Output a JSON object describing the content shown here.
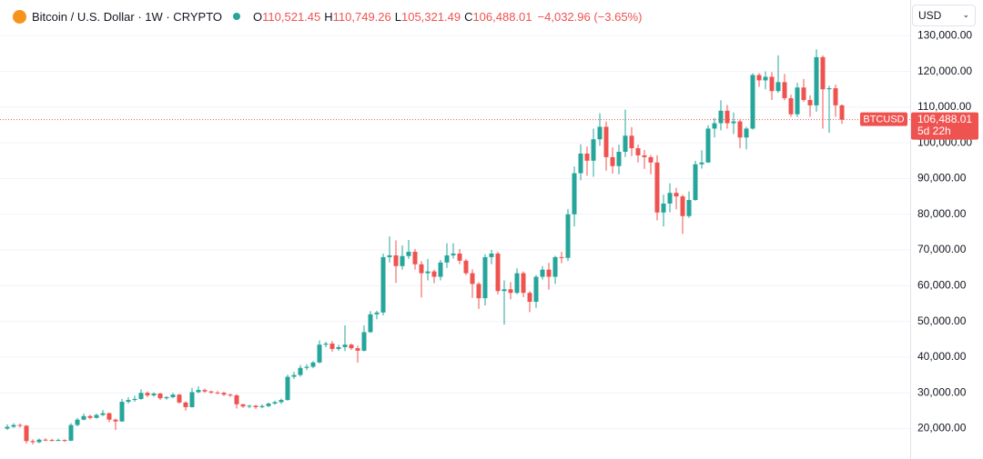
{
  "chart_data": {
    "type": "candlestick",
    "title": "Bitcoin / U.S. Dollar · 1W · CRYPTO",
    "header": {
      "o_label": "O",
      "o_value": "110,521.45",
      "h_label": "H",
      "h_value": "110,749.26",
      "l_label": "L",
      "l_value": "105,321.49",
      "c_label": "C",
      "c_value": "106,488.01",
      "change": "−4,032.96 (−3.65%)"
    },
    "currency": "USD",
    "symbol_tag": "BTCUSD",
    "last_price_label": "106,488.01",
    "countdown": "5d 22h",
    "up_color": "#26a69a",
    "down_color": "#ef5350",
    "grid": true,
    "ylim": [
      12500,
      140000
    ],
    "yticks": [
      {
        "value": 20000,
        "label": "20,000.00"
      },
      {
        "value": 30000,
        "label": "30,000.00"
      },
      {
        "value": 40000,
        "label": "40,000.00"
      },
      {
        "value": 50000,
        "label": "50,000.00"
      },
      {
        "value": 60000,
        "label": "60,000.00"
      },
      {
        "value": 70000,
        "label": "70,000.00"
      },
      {
        "value": 80000,
        "label": "80,000.00"
      },
      {
        "value": 90000,
        "label": "90,000.00"
      },
      {
        "value": 100000,
        "label": "100,000.00"
      },
      {
        "value": 110000,
        "label": "110,000.00"
      },
      {
        "value": 120000,
        "label": "120,000.00"
      },
      {
        "value": 130000,
        "label": "130,000.00"
      }
    ],
    "open": [
      20000,
      20500,
      21000,
      20800,
      16500,
      16200,
      16900,
      16800,
      16700,
      16800,
      16600,
      21000,
      22500,
      23500,
      23000,
      23800,
      24300,
      22500,
      22000,
      27500,
      28000,
      28300,
      30000,
      29300,
      29800,
      28500,
      28800,
      29500,
      27300,
      26000,
      30200,
      30800,
      30400,
      30100,
      30000,
      29500,
      29300,
      26800,
      26200,
      26400,
      26000,
      26300,
      27000,
      27400,
      28000,
      34500,
      35000,
      37000,
      37300,
      38500,
      43500,
      43800,
      42300,
      42800,
      43500,
      42500,
      41800,
      47000,
      52000,
      52500,
      68000,
      68500,
      65500,
      68300,
      69500,
      66000,
      63500,
      64000,
      62500,
      66500,
      68500,
      69000,
      67000,
      63500,
      60500,
      56500,
      68000,
      69000,
      58500,
      59000,
      58000,
      63500,
      58000,
      55500,
      62500,
      64500,
      62500,
      68000,
      67800,
      80000,
      91500,
      97000,
      95000,
      101000,
      104500,
      96000,
      93500,
      97500,
      102000,
      98500,
      96500,
      96000,
      94500,
      80500,
      83000,
      86000,
      85000,
      79500,
      84000,
      94000,
      94500,
      104000,
      105500,
      109000,
      105500,
      106000,
      101500,
      104000,
      119000,
      117500,
      118500,
      114500,
      117000,
      112500,
      108000,
      115500,
      112000,
      110500,
      124000,
      115000,
      115300,
      110521.45
    ],
    "high": [
      21200,
      21500,
      21400,
      21000,
      17000,
      17200,
      17300,
      17100,
      17200,
      17000,
      21500,
      23000,
      24200,
      23900,
      24200,
      25200,
      24500,
      22800,
      28300,
      28800,
      29200,
      31000,
      30400,
      30200,
      30000,
      29100,
      30000,
      29700,
      27600,
      31400,
      31800,
      31200,
      30600,
      30500,
      30300,
      29800,
      29600,
      26900,
      26700,
      26600,
      26800,
      27300,
      27800,
      28400,
      35100,
      35900,
      37800,
      38000,
      38900,
      44700,
      44300,
      44500,
      43500,
      48900,
      43800,
      43200,
      48900,
      52900,
      53000,
      69000,
      73800,
      72700,
      71300,
      72800,
      70300,
      66900,
      67500,
      64500,
      67200,
      71900,
      71900,
      70300,
      67500,
      64600,
      61000,
      68800,
      70000,
      69500,
      61500,
      61000,
      64900,
      64000,
      58500,
      63000,
      65500,
      66400,
      68400,
      69500,
      81500,
      93400,
      99600,
      99000,
      104000,
      108300,
      106000,
      98700,
      99500,
      109300,
      104400,
      99500,
      98000,
      96600,
      96500,
      85500,
      88700,
      87400,
      85500,
      86400,
      95000,
      97900,
      104900,
      107000,
      111900,
      110600,
      108500,
      106500,
      104500,
      119500,
      119500,
      120000,
      119800,
      124500,
      119300,
      113500,
      116800,
      117900,
      113300,
      126200,
      124500,
      116000,
      116300,
      110749.26
    ],
    "low": [
      19600,
      20200,
      20300,
      15800,
      15600,
      15900,
      16500,
      16400,
      16500,
      16300,
      16500,
      20600,
      22300,
      22600,
      22800,
      23500,
      21800,
      19600,
      21900,
      27000,
      27500,
      28100,
      28800,
      28900,
      28000,
      28100,
      28500,
      27000,
      25000,
      25900,
      29900,
      30000,
      29700,
      29600,
      29100,
      28900,
      25600,
      25800,
      25700,
      25500,
      25700,
      26000,
      26700,
      26900,
      27800,
      33900,
      34500,
      36400,
      36900,
      38300,
      42800,
      41500,
      41800,
      41700,
      42000,
      38500,
      41600,
      46800,
      50600,
      51700,
      66500,
      60800,
      64500,
      67500,
      64500,
      56700,
      61500,
      60700,
      61500,
      65000,
      67600,
      66000,
      63000,
      56600,
      53500,
      54500,
      66000,
      57600,
      49100,
      56200,
      57600,
      56800,
      52600,
      53800,
      61700,
      58900,
      60500,
      66300,
      66900,
      76600,
      89500,
      90800,
      90500,
      99200,
      92200,
      91400,
      91200,
      96000,
      96300,
      94500,
      92700,
      91200,
      78300,
      76600,
      80500,
      81400,
      74500,
      79000,
      83800,
      92800,
      94400,
      101500,
      103500,
      104000,
      102500,
      98500,
      98200,
      103700,
      115700,
      115000,
      112000,
      114000,
      111900,
      107300,
      107200,
      111500,
      107300,
      108700,
      104000,
      102800,
      107300,
      105321.49
    ],
    "close": [
      20500,
      21000,
      20800,
      16500,
      16200,
      16900,
      16800,
      16700,
      16800,
      16600,
      21000,
      22500,
      23500,
      23000,
      23800,
      24300,
      22500,
      22000,
      27500,
      28000,
      28300,
      30000,
      29300,
      29800,
      28500,
      28800,
      29500,
      27300,
      26000,
      30200,
      30800,
      30400,
      30100,
      30000,
      29500,
      29300,
      26800,
      26200,
      26400,
      26000,
      26300,
      27000,
      27400,
      28000,
      34500,
      35000,
      37000,
      37300,
      38500,
      43500,
      43800,
      42300,
      42800,
      43500,
      42500,
      41800,
      47000,
      52000,
      52500,
      68000,
      68500,
      65500,
      68300,
      69500,
      66000,
      63500,
      64000,
      62500,
      66500,
      68500,
      69000,
      67000,
      63500,
      60500,
      56500,
      68000,
      69000,
      58500,
      59000,
      58000,
      63500,
      58000,
      55500,
      62500,
      64500,
      62500,
      68000,
      67800,
      80000,
      91500,
      97000,
      95000,
      101000,
      104500,
      96000,
      93500,
      97500,
      102000,
      98500,
      96500,
      96000,
      94500,
      80500,
      83000,
      86000,
      85000,
      79500,
      84000,
      94000,
      94500,
      104000,
      105500,
      109000,
      105500,
      106000,
      101500,
      104000,
      119000,
      117500,
      118500,
      114500,
      117000,
      112500,
      108000,
      115500,
      112000,
      110500,
      124000,
      115000,
      115300,
      110521.45,
      106488.01
    ]
  }
}
